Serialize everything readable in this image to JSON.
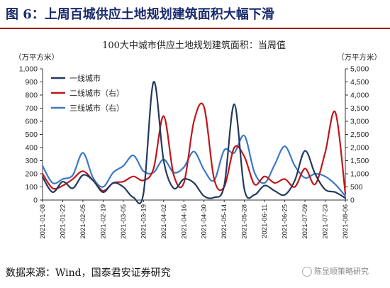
{
  "figure": {
    "title": "图 6：上周百城供应土地规划建筑面积大幅下滑",
    "source": "数据来源：Wind，国泰君安证券研究",
    "watermark": "陈显顺策略研究"
  },
  "colors": {
    "tier1": "#243a5e",
    "tier2": "#c0161c",
    "tier3": "#3c79c4",
    "title_text": "#1a2a6c",
    "title_rule": "#9c1a1a"
  },
  "chart_data": {
    "type": "line",
    "title": "100大中城市供应土地规划建筑面积：当周值",
    "left_unit": "（万平方米）",
    "right_unit": "（万平方米）",
    "ylim_left": [
      0,
      1000
    ],
    "ylim_right": [
      0,
      5000
    ],
    "yticks_left": [
      "0",
      "100",
      "200",
      "300",
      "400",
      "500",
      "600",
      "700",
      "800",
      "900",
      "1,000"
    ],
    "yticks_right": [
      "0",
      "500",
      "1,000",
      "1,500",
      "2,000",
      "2,500",
      "3,000",
      "3,500",
      "4,000",
      "4,500",
      "5,000"
    ],
    "x_tick_labels": [
      "2021-01-08",
      "2021-01-22",
      "2021-02-05",
      "2021-02-19",
      "2021-03-05",
      "2021-03-19",
      "2021-04-02",
      "2021-04-16",
      "2021-04-30",
      "2021-05-14",
      "2021-05-28",
      "2021-06-11",
      "2021-06-25",
      "2021-07-09",
      "2021-07-23",
      "2021-08-06"
    ],
    "x": [
      "2021-01-08",
      "2021-01-15",
      "2021-01-22",
      "2021-01-29",
      "2021-02-05",
      "2021-02-12",
      "2021-02-19",
      "2021-02-26",
      "2021-03-05",
      "2021-03-12",
      "2021-03-19",
      "2021-03-26",
      "2021-04-02",
      "2021-04-09",
      "2021-04-16",
      "2021-04-23",
      "2021-04-30",
      "2021-05-07",
      "2021-05-14",
      "2021-05-21",
      "2021-05-28",
      "2021-06-04",
      "2021-06-11",
      "2021-06-18",
      "2021-06-25",
      "2021-07-02",
      "2021-07-09",
      "2021-07-16",
      "2021-07-23",
      "2021-07-30",
      "2021-08-06"
    ],
    "grid": false,
    "legend_position": "top-left",
    "series": [
      {
        "name": "一线城市",
        "axis": "left",
        "color": "#243a5e",
        "values": [
          175,
          60,
          140,
          90,
          190,
          150,
          60,
          130,
          100,
          20,
          50,
          900,
          300,
          90,
          160,
          130,
          30,
          20,
          110,
          730,
          80,
          40,
          110,
          70,
          40,
          150,
          375,
          200,
          80,
          60,
          15
        ]
      },
      {
        "name": "二线城市（右）",
        "axis": "right",
        "color": "#c0161c",
        "values": [
          1000,
          450,
          550,
          800,
          1100,
          750,
          350,
          650,
          700,
          900,
          750,
          1200,
          3200,
          950,
          650,
          3000,
          3550,
          800,
          500,
          2000,
          1650,
          600,
          900,
          650,
          800,
          500,
          1200,
          600,
          1800,
          3350,
          250
        ]
      },
      {
        "name": "三线城市（右）",
        "axis": "right",
        "color": "#3c79c4",
        "values": [
          1300,
          650,
          800,
          950,
          1800,
          850,
          500,
          1050,
          1300,
          1700,
          1100,
          1050,
          1550,
          1050,
          1250,
          1850,
          1150,
          750,
          1900,
          1800,
          2450,
          1050,
          650,
          1350,
          2050,
          1300,
          850,
          1000,
          900,
          600,
          150
        ]
      }
    ]
  }
}
